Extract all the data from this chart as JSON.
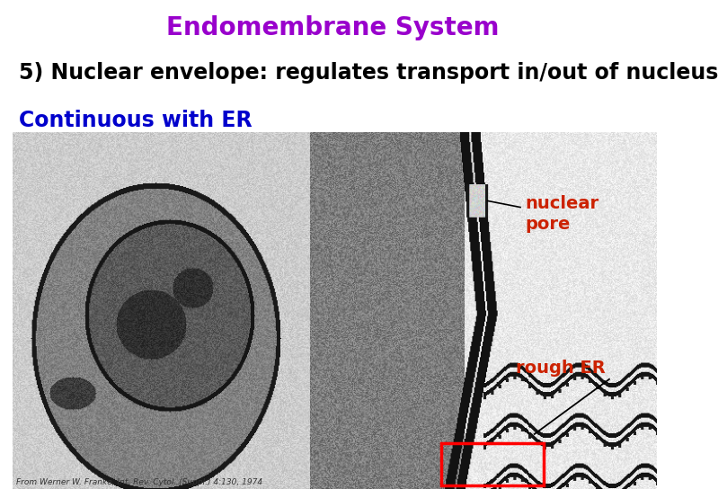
{
  "title": "Endomembrane System",
  "title_color": "#9900cc",
  "title_fontsize": 20,
  "line1": "5) Nuclear envelope: regulates transport in/out of nucleus",
  "line1_color": "#000000",
  "line1_fontsize": 17,
  "line2": "Continuous with ER",
  "line2_color": "#0000cc",
  "line2_fontsize": 17,
  "label_nuclear_pore": "nuclear\npore",
  "label_nuclear_pore_color": "#cc2200",
  "label_nuclear_pore_fontsize": 14,
  "label_rough_er": "rough ER",
  "label_rough_er_color": "#cc2200",
  "label_rough_er_fontsize": 14,
  "background_color": "#ffffff",
  "caption_text": "From Werner W. Franke, Int. Rev. Cytol. (Suppl.) 4:130, 1974",
  "caption_color": "#333333",
  "caption_fontsize": 6.5
}
